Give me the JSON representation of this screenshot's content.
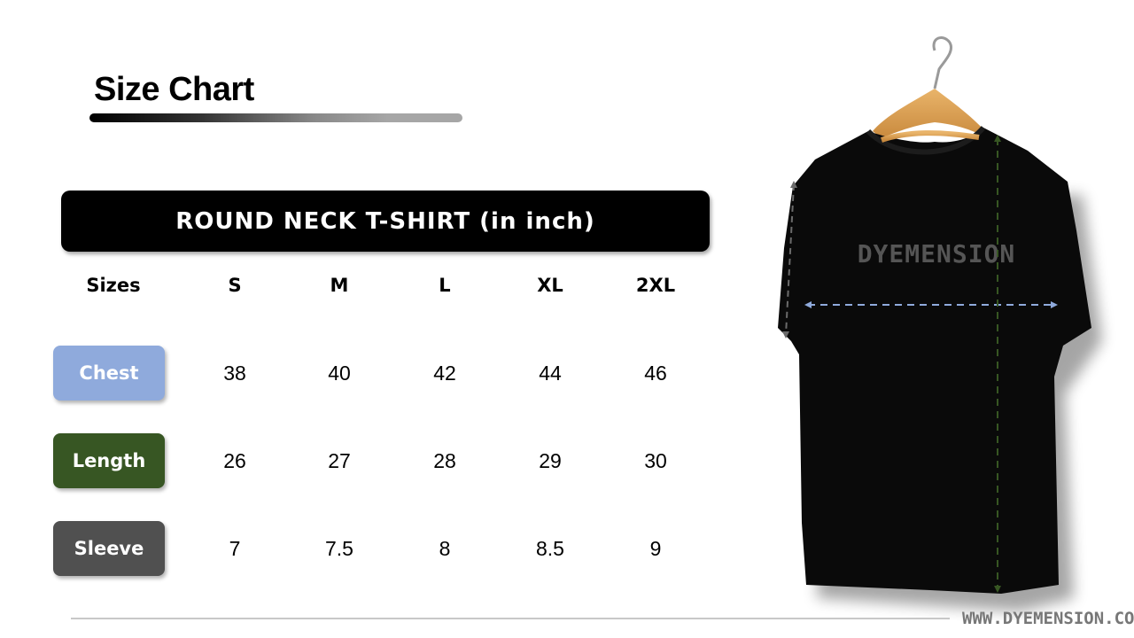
{
  "title": "Size Chart",
  "banner": "ROUND NECK T-SHIRT (in inch)",
  "table": {
    "header": [
      "Sizes",
      "S",
      "M",
      "L",
      "XL",
      "2XL"
    ],
    "rows": [
      {
        "label": "Chest",
        "color": "#8faadc",
        "values": [
          "38",
          "40",
          "42",
          "44",
          "46"
        ]
      },
      {
        "label": "Length",
        "color": "#375623",
        "values": [
          "26",
          "27",
          "28",
          "29",
          "30"
        ]
      },
      {
        "label": "Sleeve",
        "color": "#505050",
        "values": [
          "7",
          "7.5",
          "8",
          "8.5",
          "9"
        ]
      }
    ]
  },
  "product_image": {
    "shirt_print": "DYEMENSION",
    "chest_arrow_color": "#8faadc",
    "length_arrow_color": "#375623",
    "sleeve_arrow_color": "#6b6b6b"
  },
  "footer": {
    "url": "WWW.DYEMENSION.CO"
  }
}
